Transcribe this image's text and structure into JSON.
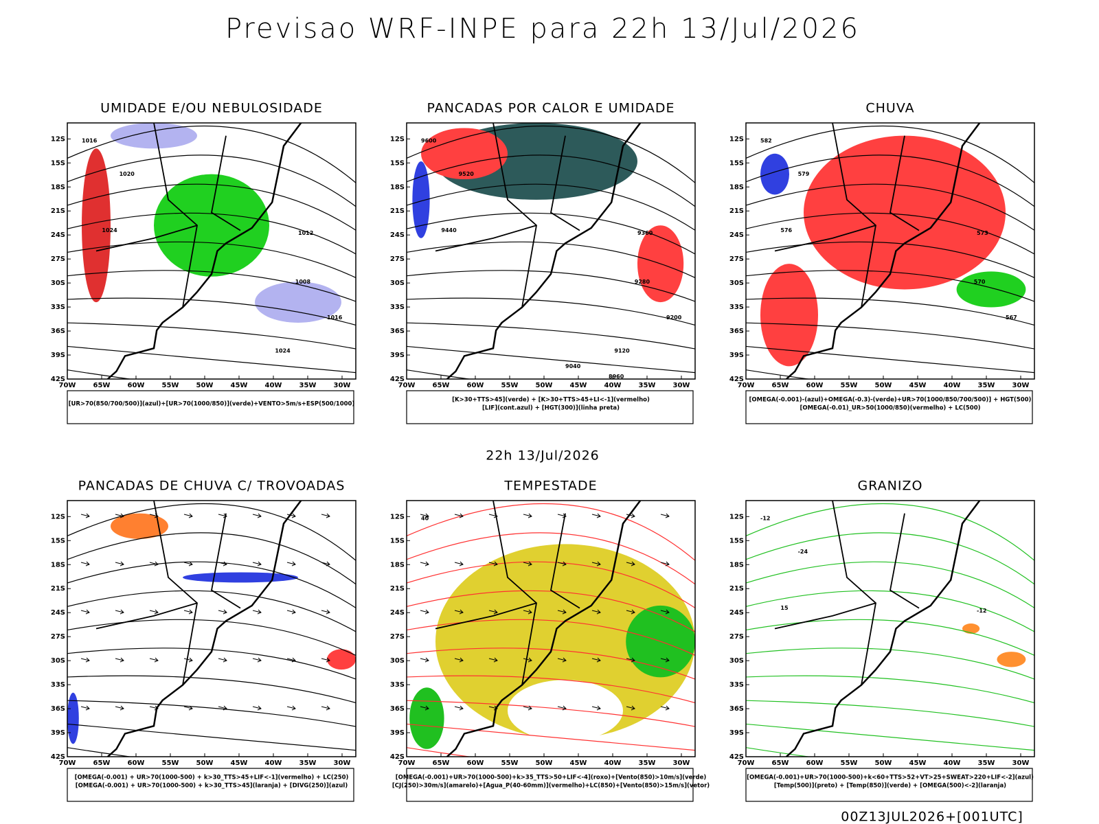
{
  "header": {
    "title": "Previsao WRF-INPE  para 22h 13/Jul/2026",
    "subtitle": "22h 13/Jul/2026"
  },
  "map_axes": {
    "lat_ticks": [
      "12S",
      "15S",
      "18S",
      "21S",
      "24S",
      "27S",
      "30S",
      "33S",
      "36S",
      "39S",
      "42S"
    ],
    "lon_ticks": [
      "70W",
      "65W",
      "60W",
      "55W",
      "50W",
      "45W",
      "40W",
      "35W",
      "30W"
    ]
  },
  "panels": [
    {
      "title": "UMIDADE E/OU NEBULOSIDADE",
      "legend": [
        "[UR>70(850/700/500)](azul)+[UR>70(1000/850)](verde)+VENTO>5m/s+ESP(500/1000)"
      ],
      "contour_labels": [
        "1016",
        "1020",
        "1024",
        "1012",
        "1008",
        "1016",
        "1024"
      ]
    },
    {
      "title": "PANCADAS POR CALOR E UMIDADE",
      "legend": [
        "[K>30+TTS>45](verde) + [K>30+TTS>45+LI<-1](vermelho)",
        "[LIF](cont.azul) + [HGT(300)](linha preta)"
      ],
      "contour_labels": [
        "9600",
        "9520",
        "9440",
        "9360",
        "9280",
        "9200",
        "9120",
        "9040",
        "8960"
      ]
    },
    {
      "title": "CHUVA",
      "legend": [
        "[OMEGA(-0.001)-(azul)+OMEGA(-0.3)-(verde)+UR>70(1000/850/700/500)] + HGT(500)",
        "[OMEGA(-0.01)_UR>50(1000/850)(vermelho) + LC(500)"
      ],
      "contour_labels": [
        "582",
        "579",
        "576",
        "573",
        "570",
        "567"
      ]
    },
    {
      "title": "PANCADAS DE CHUVA C/ TROVOADAS",
      "legend": [
        "[OMEGA(-0.001) + UR>70(1000-500) + k>30_TTS>45+LIF<-1](vermelho) + LC(250)",
        "[OMEGA(-0.001) + UR>70(1000-500) + k>30_TTS>45](laranja) + [DIVG(250)](azul)"
      ],
      "contour_labels": []
    },
    {
      "title": "TEMPESTADE",
      "legend": [
        "[OMEGA(-0.001)+UR>70(1000-500)+k>35_TTS>50+LIF<-4](roxo)+[Vento(850)>10m/s](verde)",
        "[CJ(250)>30m/s](amarelo)+[Agua_P(40-60mm)](vermelho)+LC(850)+[Vento(850)>15m/s](vetor)"
      ],
      "contour_labels": [
        "40"
      ]
    },
    {
      "title": "GRANIZO",
      "legend": [
        "[OMEGA(-0.001)+UR>70(1000-500)+k<60+TTS>52+VT>25+SWEAT>220+LIF<-2](azul)",
        "[Temp(500)](preto) + [Temp(850)](verde) + [OMEGA(500)<-2](laranja)"
      ],
      "contour_labels": [
        "-12",
        "-24",
        "15",
        "-12"
      ]
    }
  ],
  "footer": "00Z13JUL2026+[001UTC]"
}
